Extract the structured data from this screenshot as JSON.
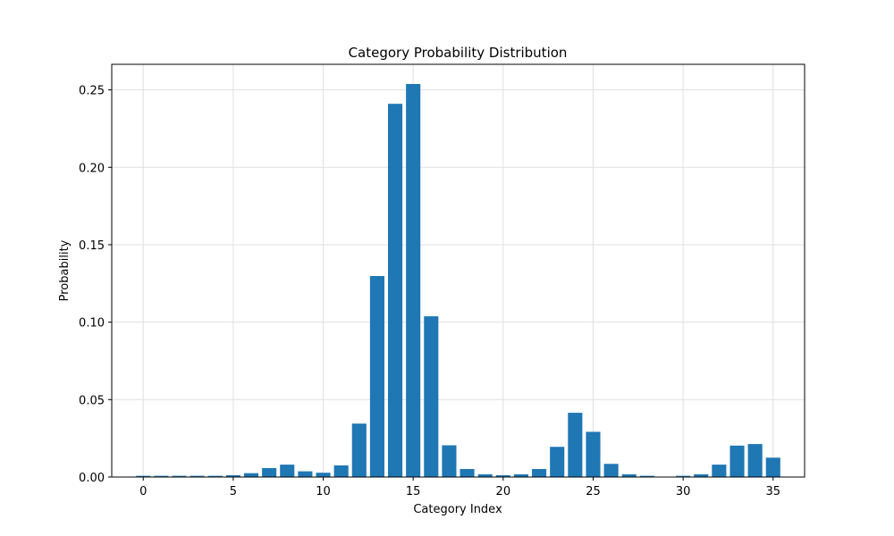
{
  "chart_data": {
    "type": "bar",
    "title": "Category Probability Distribution",
    "xlabel": "Category Index",
    "ylabel": "Probability",
    "x": [
      0,
      1,
      2,
      3,
      4,
      5,
      6,
      7,
      8,
      9,
      10,
      11,
      12,
      13,
      14,
      15,
      16,
      17,
      18,
      19,
      20,
      21,
      22,
      23,
      24,
      25,
      26,
      27,
      28,
      29,
      30,
      31,
      32,
      33,
      34,
      35
    ],
    "values": [
      0.0008,
      0.0008,
      0.0008,
      0.0008,
      0.0008,
      0.0012,
      0.0025,
      0.0058,
      0.008,
      0.0037,
      0.0028,
      0.0075,
      0.0345,
      0.1298,
      0.241,
      0.2538,
      0.1038,
      0.0205,
      0.0052,
      0.0018,
      0.0012,
      0.0018,
      0.0052,
      0.0195,
      0.0415,
      0.0292,
      0.0085,
      0.0018,
      0.0008,
      0.0002,
      0.0008,
      0.0018,
      0.008,
      0.0203,
      0.0213,
      0.0125
    ],
    "xlim": [
      -1.75,
      36.75
    ],
    "ylim": [
      0,
      0.2665
    ],
    "xticks": [
      0,
      5,
      10,
      15,
      20,
      25,
      30,
      35
    ],
    "yticks": [
      0,
      0.05,
      0.1,
      0.15,
      0.2,
      0.25
    ],
    "xtick_labels": [
      "0",
      "5",
      "10",
      "15",
      "20",
      "25",
      "30",
      "35"
    ],
    "ytick_labels": [
      "0.00",
      "0.05",
      "0.10",
      "0.15",
      "0.20",
      "0.25"
    ],
    "grid": true,
    "bar_color": "#1f77b4",
    "grid_color": "#e0e0e0"
  }
}
